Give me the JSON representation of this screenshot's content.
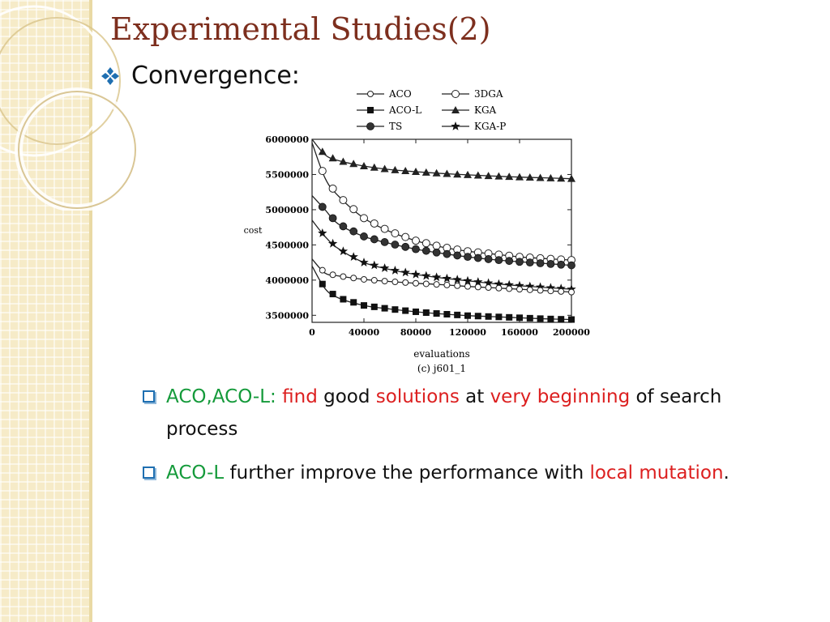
{
  "slide": {
    "title": "Experimental Studies(2)",
    "bullet": "Convergence:"
  },
  "colors": {
    "title": "#7d2f1e",
    "panel": "#f6ebc8",
    "accent_green": "#149a3a",
    "accent_red": "#dc1f1f",
    "bullet_blue": "#1f6fb1"
  },
  "icons": {
    "bullet_main": "diamond-cluster-icon",
    "bullet_sub": "square-bullet-icon"
  },
  "points": [
    {
      "p1": "ACO,ACO-L:",
      "p2": " find",
      "p3": " good ",
      "p4": "solutions",
      "p5": " at ",
      "p6": "very beginning",
      "p7": " of search process"
    },
    {
      "p1": "ACO-L",
      "p2": " further improve the performance with ",
      "p3": "local mutation",
      "p4": "."
    }
  ],
  "chart_data": {
    "type": "line",
    "caption": "(c) j601_1",
    "xlabel": "evaluations",
    "ylabel": "cost",
    "xlim": [
      0,
      200000
    ],
    "ylim": [
      3400000,
      6000000
    ],
    "xticks": [
      "0",
      "40000",
      "80000",
      "120000",
      "160000",
      "200000"
    ],
    "yticks": [
      "3500000",
      "4000000",
      "4500000",
      "5000000",
      "5500000",
      "6000000"
    ],
    "legend": [
      {
        "name": "ACO",
        "marker": "circle-open-small"
      },
      {
        "name": "3DGA",
        "marker": "circle-open"
      },
      {
        "name": "ACO-L",
        "marker": "square"
      },
      {
        "name": "KGA",
        "marker": "triangle"
      },
      {
        "name": "TS",
        "marker": "circle-filled"
      },
      {
        "name": "KGA-P",
        "marker": "star"
      }
    ],
    "x": [
      0,
      10000,
      20000,
      40000,
      60000,
      80000,
      100000,
      120000,
      140000,
      160000,
      180000,
      200000
    ],
    "series": [
      {
        "name": "KGA",
        "marker": "triangle",
        "values": [
          6000000,
          5780000,
          5700000,
          5620000,
          5570000,
          5540000,
          5515000,
          5495000,
          5478000,
          5463000,
          5452000,
          5440000
        ]
      },
      {
        "name": "3DGA",
        "marker": "circle-open",
        "values": [
          5950000,
          5450000,
          5200000,
          4880000,
          4690000,
          4560000,
          4470000,
          4410000,
          4370000,
          4330000,
          4305000,
          4285000
        ]
      },
      {
        "name": "TS",
        "marker": "circle-filled",
        "values": [
          5200000,
          5000000,
          4800000,
          4620000,
          4520000,
          4440000,
          4380000,
          4330000,
          4290000,
          4260000,
          4235000,
          4210000
        ]
      },
      {
        "name": "KGA-P",
        "marker": "star",
        "values": [
          4850000,
          4620000,
          4450000,
          4250000,
          4150000,
          4080000,
          4030000,
          3990000,
          3950000,
          3920000,
          3895000,
          3870000
        ]
      },
      {
        "name": "ACO",
        "marker": "circle-open-small",
        "values": [
          4300000,
          4100000,
          4060000,
          4010000,
          3980000,
          3955000,
          3935000,
          3910000,
          3890000,
          3870000,
          3850000,
          3830000
        ]
      },
      {
        "name": "ACO-L",
        "marker": "square",
        "values": [
          4200000,
          3880000,
          3750000,
          3640000,
          3590000,
          3550000,
          3520000,
          3495000,
          3480000,
          3465000,
          3450000,
          3440000
        ]
      }
    ]
  }
}
